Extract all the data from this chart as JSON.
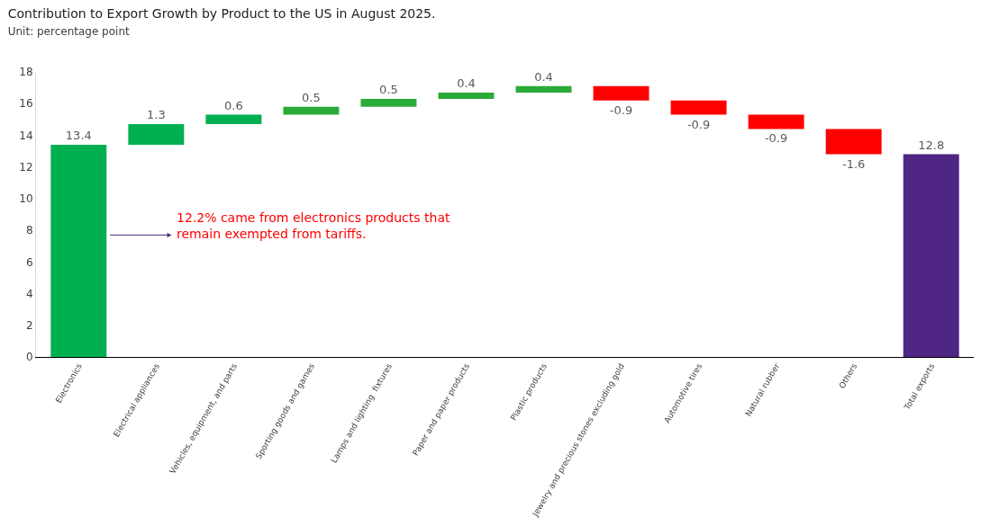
{
  "chart_data": {
    "type": "bar",
    "title": "Contribution to Export Growth by Product to the US in August 2025.",
    "subtitle": "Unit: percentage point",
    "categories": [
      "Electronics",
      "Electrical appliances",
      "Vehicles, equipment, and parts",
      "Sporting goods and games",
      "Lamps and lighting  fixtures",
      "Paper and paper products",
      "Plastic products",
      "Jewelry and precious stones excluding gold",
      "Automotive tires",
      "Natural rubber",
      "Others",
      "Total exports"
    ],
    "values": [
      13.4,
      1.3,
      0.6,
      0.5,
      0.5,
      0.4,
      0.4,
      -0.9,
      -0.9,
      -0.9,
      -1.6,
      12.8
    ],
    "base": [
      0,
      13.4,
      14.7,
      15.3,
      15.8,
      16.3,
      16.7,
      17.1,
      16.2,
      15.3,
      14.4,
      0
    ],
    "colors": [
      "#00b050",
      "#00b050",
      "#00b050",
      "#2aaa38",
      "#2aaa38",
      "#2aaa38",
      "#2aaa38",
      "#ff0000",
      "#ff0000",
      "#ff0000",
      "#ff0000",
      "#4f2683"
    ],
    "data_labels": true,
    "ylim": [
      0,
      18
    ],
    "yticks": [
      0,
      2,
      4,
      6,
      8,
      10,
      12,
      14,
      16,
      18
    ],
    "annotations": [
      "12.2% came from electronics products that\nremain exempted from tariffs."
    ]
  }
}
